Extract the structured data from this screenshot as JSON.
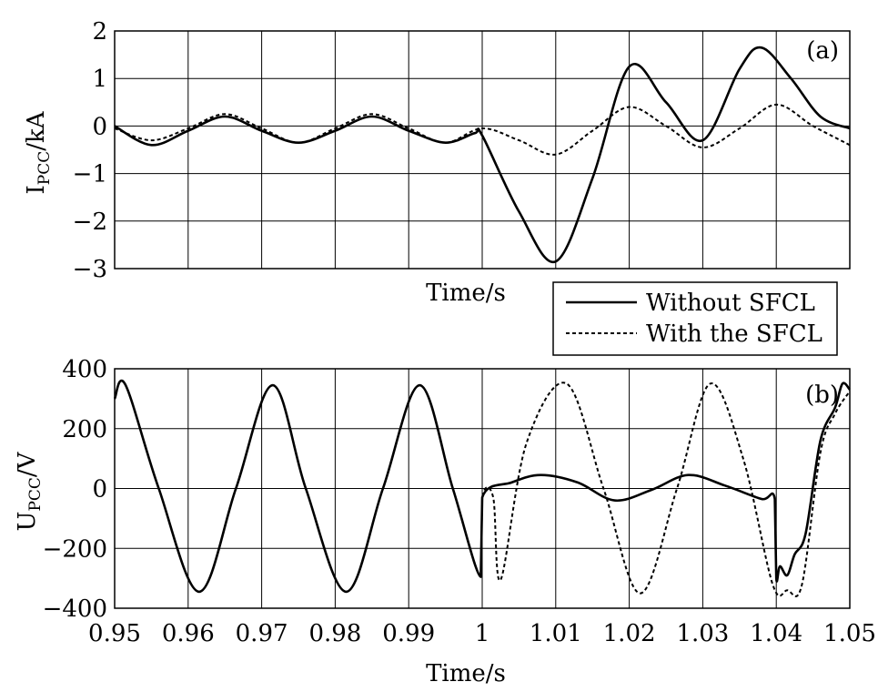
{
  "chart_data": [
    {
      "type": "line",
      "panel_label": "(a)",
      "ylabel_main": "I",
      "ylabel_sub": "PCC",
      "ylabel_unit": "/kA",
      "xlabel": "Time/s",
      "xlim": [
        0.95,
        1.05
      ],
      "ylim": [
        -3,
        2
      ],
      "yticks": [
        "2",
        "1",
        "0",
        "−1",
        "−2",
        "−3"
      ],
      "grid": true,
      "series": [
        {
          "name": "Without SFCL",
          "style": "solid",
          "x": [
            0.95,
            0.955,
            0.96,
            0.965,
            0.97,
            0.975,
            0.98,
            0.985,
            0.99,
            0.995,
            0.999,
            1.0,
            1.005,
            1.01,
            1.015,
            1.02,
            1.025,
            1.03,
            1.035,
            1.038,
            1.042,
            1.046,
            1.05
          ],
          "y": [
            0.0,
            -0.4,
            -0.1,
            0.2,
            -0.1,
            -0.35,
            -0.1,
            0.2,
            -0.1,
            -0.35,
            -0.15,
            -0.2,
            -1.8,
            -2.85,
            -1.1,
            1.25,
            0.5,
            -0.3,
            1.2,
            1.65,
            1.0,
            0.2,
            -0.05
          ]
        },
        {
          "name": "With the SFCL",
          "style": "dashed",
          "x": [
            0.95,
            0.955,
            0.96,
            0.965,
            0.97,
            0.975,
            0.98,
            0.985,
            0.99,
            0.995,
            1.0,
            1.005,
            1.01,
            1.015,
            1.02,
            1.025,
            1.03,
            1.035,
            1.04,
            1.045,
            1.05
          ],
          "y": [
            -0.05,
            -0.3,
            -0.05,
            0.25,
            -0.05,
            -0.35,
            -0.05,
            0.25,
            -0.05,
            -0.35,
            -0.05,
            -0.3,
            -0.6,
            -0.1,
            0.4,
            0.0,
            -0.45,
            -0.05,
            0.45,
            0.0,
            -0.4
          ]
        }
      ]
    },
    {
      "type": "line",
      "panel_label": "(b)",
      "ylabel_main": "U",
      "ylabel_sub": "PCC",
      "ylabel_unit": "/V",
      "xlabel": "Time/s",
      "xlim": [
        0.95,
        1.05
      ],
      "ylim": [
        -400,
        400
      ],
      "xticks": [
        "0.95",
        "0.96",
        "0.97",
        "0.98",
        "0.99",
        "1",
        "1.01",
        "1.02",
        "1.03",
        "1.04",
        "1.05"
      ],
      "yticks": [
        "400",
        "200",
        "0",
        "−200",
        "−400"
      ],
      "grid": true,
      "series": [
        {
          "name": "Without SFCL",
          "style": "solid",
          "x": [
            0.95,
            0.9515,
            0.956,
            0.9615,
            0.9665,
            0.9715,
            0.976,
            0.9815,
            0.9865,
            0.9915,
            0.996,
            0.9998,
            1.0,
            1.004,
            1.008,
            1.013,
            1.018,
            1.023,
            1.028,
            1.033,
            1.038,
            1.0398,
            1.04,
            1.0405,
            1.0415,
            1.0425,
            1.044,
            1.046,
            1.048,
            1.049,
            1.05
          ],
          "y": [
            300,
            345,
            0,
            -345,
            0,
            345,
            0,
            -345,
            0,
            345,
            0,
            -295,
            -30,
            20,
            45,
            20,
            -40,
            -5,
            45,
            10,
            -35,
            -35,
            -300,
            -260,
            -290,
            -220,
            -150,
            160,
            270,
            350,
            330
          ]
        },
        {
          "name": "With the SFCL",
          "style": "dashed",
          "x": [
            0.95,
            0.9515,
            0.956,
            0.9615,
            0.9665,
            0.9715,
            0.976,
            0.9815,
            0.9865,
            0.9915,
            0.996,
            0.9998,
            1.0,
            1.0015,
            1.0025,
            1.006,
            1.0115,
            1.0165,
            1.0215,
            1.0265,
            1.031,
            1.0355,
            1.0395,
            1.0415,
            1.0435,
            1.046,
            1.048,
            1.05
          ],
          "y": [
            300,
            345,
            0,
            -345,
            0,
            345,
            0,
            -345,
            0,
            345,
            0,
            -295,
            -30,
            -30,
            -305,
            150,
            350,
            0,
            -350,
            0,
            350,
            100,
            -320,
            -340,
            -320,
            120,
            250,
            325
          ]
        }
      ]
    }
  ],
  "legend": {
    "position": "between-panels-right",
    "items": [
      "Without SFCL",
      "With the SFCL"
    ]
  }
}
